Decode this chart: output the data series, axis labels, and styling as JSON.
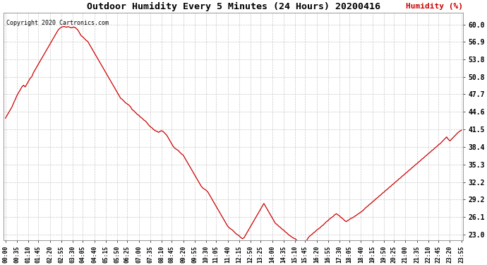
{
  "title": "Outdoor Humidity Every 5 Minutes (24 Hours) 20200416",
  "ylabel": "Humidity (%)",
  "copyright": "Copyright 2020 Cartronics.com",
  "line_color": "#cc0000",
  "bg_color": "#ffffff",
  "grid_color": "#bbbbbb",
  "yticks": [
    23.0,
    26.1,
    29.2,
    32.2,
    35.3,
    38.4,
    41.5,
    44.6,
    47.7,
    50.8,
    53.8,
    56.9,
    60.0
  ],
  "ylim": [
    22.0,
    62.0
  ],
  "humidity": [
    43.5,
    44.0,
    44.5,
    45.0,
    45.5,
    46.2,
    46.8,
    47.5,
    48.0,
    48.5,
    49.0,
    49.3,
    49.0,
    49.5,
    50.0,
    50.5,
    50.8,
    51.5,
    52.0,
    52.5,
    53.0,
    53.5,
    54.0,
    54.5,
    55.0,
    55.5,
    56.0,
    56.5,
    57.0,
    57.5,
    58.0,
    58.5,
    59.0,
    59.3,
    59.5,
    59.6,
    59.6,
    59.5,
    59.6,
    59.5,
    59.4,
    59.5,
    59.5,
    59.3,
    59.0,
    58.5,
    58.0,
    57.8,
    57.5,
    57.2,
    57.0,
    56.5,
    56.0,
    55.5,
    55.0,
    54.5,
    54.0,
    53.5,
    53.0,
    52.5,
    52.0,
    51.5,
    51.0,
    50.5,
    50.0,
    49.5,
    49.0,
    48.5,
    48.0,
    47.5,
    47.0,
    46.8,
    46.5,
    46.2,
    46.0,
    45.8,
    45.5,
    45.0,
    44.8,
    44.5,
    44.2,
    44.0,
    43.7,
    43.5,
    43.2,
    43.0,
    42.7,
    42.3,
    42.0,
    41.8,
    41.5,
    41.3,
    41.2,
    41.0,
    41.2,
    41.3,
    41.1,
    40.8,
    40.5,
    40.0,
    39.5,
    39.0,
    38.5,
    38.2,
    38.0,
    37.8,
    37.5,
    37.2,
    37.0,
    36.5,
    36.0,
    35.5,
    35.0,
    34.5,
    34.0,
    33.5,
    33.0,
    32.5,
    32.0,
    31.5,
    31.2,
    31.0,
    30.8,
    30.5,
    30.0,
    29.5,
    29.0,
    28.5,
    28.0,
    27.5,
    27.0,
    26.5,
    26.0,
    25.5,
    25.0,
    24.5,
    24.2,
    24.0,
    23.8,
    23.5,
    23.2,
    23.0,
    22.8,
    22.5,
    22.3,
    22.5,
    23.0,
    23.5,
    24.0,
    24.5,
    25.0,
    25.5,
    26.0,
    26.5,
    27.0,
    27.5,
    28.0,
    28.5,
    28.0,
    27.5,
    27.0,
    26.5,
    26.0,
    25.5,
    25.0,
    24.8,
    24.5,
    24.3,
    24.0,
    23.8,
    23.5,
    23.3,
    23.0,
    22.8,
    22.6,
    22.4,
    22.3,
    22.0,
    21.8,
    21.7,
    21.5,
    21.5,
    21.6,
    22.0,
    22.5,
    22.8,
    23.0,
    23.3,
    23.5,
    23.8,
    24.0,
    24.2,
    24.5,
    24.7,
    25.0,
    25.3,
    25.5,
    25.8,
    26.0,
    26.2,
    26.5,
    26.7,
    26.5,
    26.3,
    26.0,
    25.8,
    25.5,
    25.3,
    25.5,
    25.7,
    25.9,
    26.0,
    26.2,
    26.4,
    26.6,
    26.8,
    27.0,
    27.2,
    27.5,
    27.8,
    28.0,
    28.3,
    28.5,
    28.8,
    29.0,
    29.3,
    29.5,
    29.8,
    30.0,
    30.3,
    30.5,
    30.8,
    31.0,
    31.3,
    31.5,
    31.8,
    32.0,
    32.3,
    32.5,
    32.8,
    33.0,
    33.3,
    33.5,
    33.8,
    34.0,
    34.3,
    34.5,
    34.8,
    35.0,
    35.3,
    35.5,
    35.8,
    36.0,
    36.3,
    36.5,
    36.8,
    37.0,
    37.3,
    37.5,
    37.8,
    38.0,
    38.3,
    38.5,
    38.8,
    39.0,
    39.3,
    39.6,
    39.9,
    40.2,
    39.8,
    39.5,
    39.8,
    40.1,
    40.4,
    40.7,
    41.0,
    41.2,
    41.4
  ],
  "xtick_labels": [
    "00:00",
    "00:35",
    "01:10",
    "01:45",
    "02:20",
    "02:55",
    "03:30",
    "04:05",
    "04:40",
    "05:15",
    "05:50",
    "06:25",
    "07:00",
    "07:35",
    "08:10",
    "08:45",
    "09:20",
    "09:55",
    "10:30",
    "11:05",
    "11:40",
    "12:15",
    "12:50",
    "13:25",
    "14:00",
    "14:35",
    "15:10",
    "15:45",
    "16:20",
    "16:55",
    "17:30",
    "18:05",
    "18:40",
    "19:15",
    "19:50",
    "20:25",
    "21:00",
    "21:35",
    "22:10",
    "22:45",
    "23:20",
    "23:55"
  ]
}
